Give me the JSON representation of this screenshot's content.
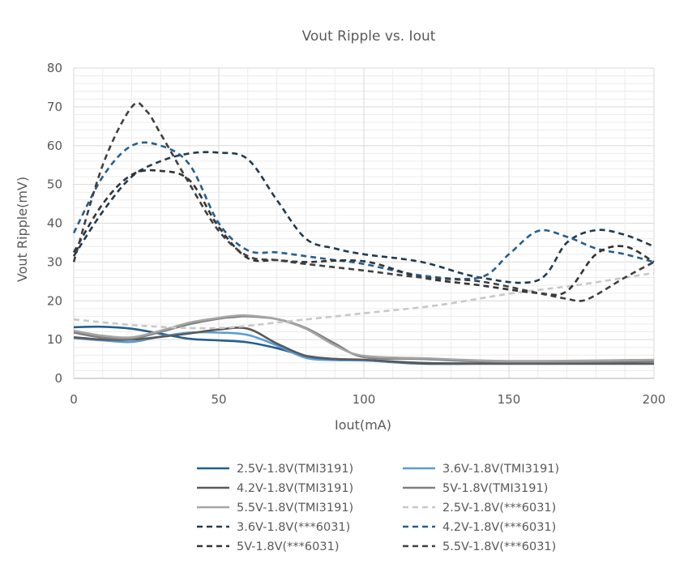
{
  "chart_data": {
    "type": "line",
    "title": "Vout Ripple vs. Iout",
    "xlabel": "Iout(mA)",
    "ylabel": "Vout Ripple(mV)",
    "xlim": [
      0,
      200
    ],
    "ylim": [
      0,
      80
    ],
    "x_ticks": [
      "0",
      "50",
      "100",
      "150",
      "200"
    ],
    "y_ticks": [
      "0",
      "10",
      "20",
      "30",
      "40",
      "50",
      "60",
      "70",
      "80"
    ],
    "grid": true,
    "legend_position": "bottom",
    "series": [
      {
        "name": "2.5V-1.8V(TMI3191)",
        "color": "#255e91",
        "dash": "solid",
        "x": [
          0,
          10,
          20,
          30,
          40,
          50,
          60,
          70,
          80,
          90,
          100,
          120,
          150,
          200
        ],
        "y": [
          13.2,
          13.3,
          12.8,
          11.5,
          10.2,
          9.8,
          9.3,
          7.8,
          5.8,
          5.0,
          4.7,
          3.8,
          3.8,
          3.8
        ]
      },
      {
        "name": "3.6V-1.8V(TMI3191)",
        "color": "#5b9bd5",
        "dash": "solid",
        "x": [
          0,
          10,
          20,
          30,
          40,
          50,
          60,
          70,
          80,
          90,
          100,
          120,
          150,
          200
        ],
        "y": [
          10.4,
          9.8,
          9.4,
          10.8,
          11.8,
          11.8,
          11.2,
          8.5,
          5.3,
          4.7,
          4.6,
          4.0,
          3.8,
          3.8
        ]
      },
      {
        "name": "4.2V-1.8V(TMI3191)",
        "color": "#595959",
        "dash": "solid",
        "x": [
          0,
          10,
          20,
          30,
          40,
          50,
          60,
          70,
          80,
          90,
          100,
          120,
          150,
          200
        ],
        "y": [
          10.6,
          10.0,
          10.0,
          10.7,
          11.6,
          12.6,
          12.8,
          9.0,
          5.8,
          5.0,
          4.8,
          4.0,
          3.8,
          3.8
        ]
      },
      {
        "name": "5V-1.8V(TMI3191)",
        "color": "#7f7f7f",
        "dash": "solid",
        "x": [
          0,
          10,
          20,
          30,
          40,
          50,
          55,
          60,
          70,
          80,
          90,
          100,
          120,
          150,
          200
        ],
        "y": [
          11.8,
          10.5,
          10.3,
          12.0,
          14.0,
          15.4,
          15.8,
          16.0,
          15.3,
          13.0,
          9.0,
          5.5,
          5.0,
          4.2,
          4.4
        ]
      },
      {
        "name": "5.5V-1.8V(TMI3191)",
        "color": "#a5a5a5",
        "dash": "solid",
        "x": [
          0,
          10,
          20,
          30,
          40,
          50,
          55,
          60,
          70,
          80,
          90,
          100,
          120,
          150,
          200
        ],
        "y": [
          12.3,
          11.0,
          10.6,
          12.3,
          14.4,
          15.6,
          16.1,
          16.2,
          15.3,
          12.8,
          8.5,
          5.8,
          5.2,
          4.5,
          4.8
        ]
      },
      {
        "name": "2.5V-1.8V(***6031)",
        "color": "#c8c8c8",
        "dash": "dash",
        "x": [
          0,
          25,
          50,
          75,
          100,
          125,
          150,
          175,
          200
        ],
        "y": [
          15.2,
          13.5,
          13.0,
          14.8,
          16.8,
          18.8,
          21.8,
          24.2,
          27.2
        ]
      },
      {
        "name": "3.6V-1.8V(***6031)",
        "color": "#203a4f",
        "dash": "dash",
        "x": [
          0,
          10,
          20,
          30,
          40,
          50,
          60,
          70,
          80,
          90,
          100,
          120,
          140,
          160,
          170,
          180,
          190,
          200
        ],
        "y": [
          31.5,
          43.0,
          52.0,
          56.0,
          58.0,
          58.2,
          56.5,
          46.0,
          36.0,
          33.5,
          32.0,
          30.0,
          26.0,
          25.3,
          35.0,
          38.2,
          37.0,
          34.0
        ]
      },
      {
        "name": "4.2V-1.8V(***6031)",
        "color": "#255e91",
        "dash": "dash",
        "x": [
          0,
          10,
          20,
          30,
          40,
          50,
          60,
          70,
          80,
          90,
          100,
          120,
          140,
          150,
          160,
          170,
          180,
          190,
          200
        ],
        "y": [
          37.5,
          52.0,
          60.0,
          60.0,
          55.0,
          40.0,
          33.0,
          32.5,
          31.5,
          30.5,
          29.5,
          26.5,
          26.0,
          32.0,
          38.0,
          36.5,
          33.5,
          32.0,
          30.0
        ]
      },
      {
        "name": "5V-1.8V(***6031)",
        "color": "#333333",
        "dash": "dash",
        "x": [
          0,
          10,
          20,
          30,
          40,
          50,
          60,
          70,
          80,
          100,
          120,
          140,
          160,
          170,
          180,
          190,
          200
        ],
        "y": [
          32.5,
          45.0,
          52.5,
          53.5,
          51.0,
          39.0,
          31.0,
          30.5,
          30.0,
          30.2,
          26.0,
          24.0,
          22.0,
          22.5,
          32.0,
          34.0,
          30.0
        ]
      },
      {
        "name": "5.5V-1.8V(***6031)",
        "color": "#404040",
        "dash": "dash",
        "x": [
          0,
          10,
          20,
          25,
          30,
          40,
          50,
          60,
          70,
          80,
          100,
          120,
          140,
          160,
          170,
          175,
          180,
          190,
          200
        ],
        "y": [
          30.0,
          55.0,
          70.0,
          69.0,
          63.0,
          50.0,
          38.0,
          31.5,
          30.5,
          29.5,
          27.8,
          26.0,
          25.0,
          22.0,
          20.5,
          20.0,
          21.5,
          26.0,
          30.0
        ]
      }
    ]
  }
}
